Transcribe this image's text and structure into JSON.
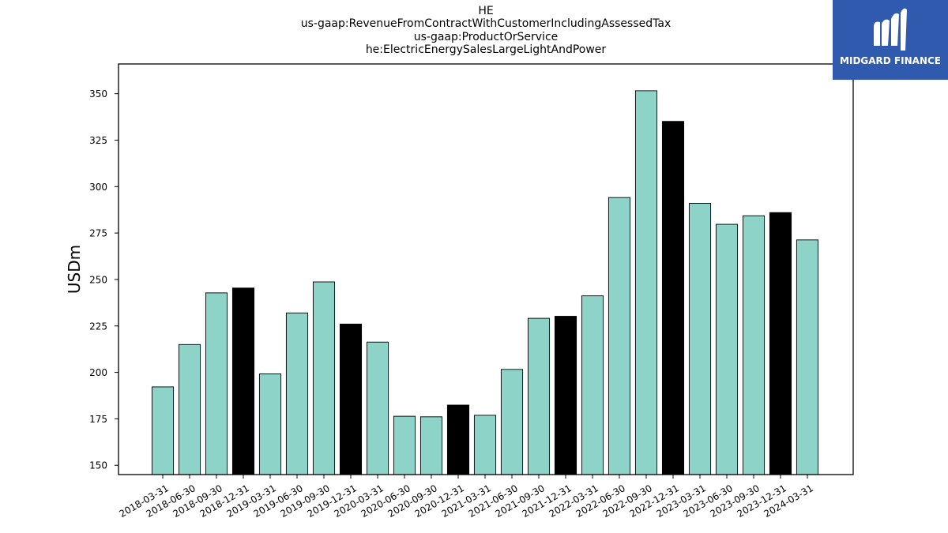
{
  "chart_data": {
    "type": "bar",
    "title_lines": [
      "HE",
      "us-gaap:RevenueFromContractWithCustomerIncludingAssessedTax",
      "us-gaap:ProductOrService",
      "he:ElectricEnergySalesLargeLightAndPower"
    ],
    "xlabel": "",
    "ylabel": "USDm",
    "ylim": [
      145,
      366
    ],
    "yticks": [
      150,
      175,
      200,
      225,
      250,
      275,
      300,
      325,
      350
    ],
    "categories": [
      "2018-03-31",
      "2018-06-30",
      "2018-09-30",
      "2018-12-31",
      "2019-03-31",
      "2019-06-30",
      "2019-09-30",
      "2019-12-31",
      "2020-03-31",
      "2020-06-30",
      "2020-09-30",
      "2020-12-31",
      "2021-03-31",
      "2021-06-30",
      "2021-09-30",
      "2021-12-31",
      "2022-03-31",
      "2022-06-30",
      "2022-09-30",
      "2022-12-31",
      "2023-03-31",
      "2023-06-30",
      "2023-09-30",
      "2023-12-31",
      "2024-03-31"
    ],
    "values": [
      192.2,
      215.0,
      242.8,
      245.4,
      199.2,
      232.0,
      248.7,
      226.0,
      216.3,
      176.4,
      176.1,
      182.4,
      176.9,
      201.6,
      229.1,
      230.2,
      241.2,
      294.1,
      351.6,
      335.1,
      291.0,
      279.7,
      284.3,
      286.0,
      271.3
    ],
    "year_end_quarter": "12-31",
    "colors": {
      "quarter_bar": "#8dd3c7",
      "year_end_bar": "#000000",
      "bar_edge": "#000000"
    }
  },
  "logo": {
    "text": "MIDGARD FINANCE",
    "background": "#2f5aad"
  }
}
